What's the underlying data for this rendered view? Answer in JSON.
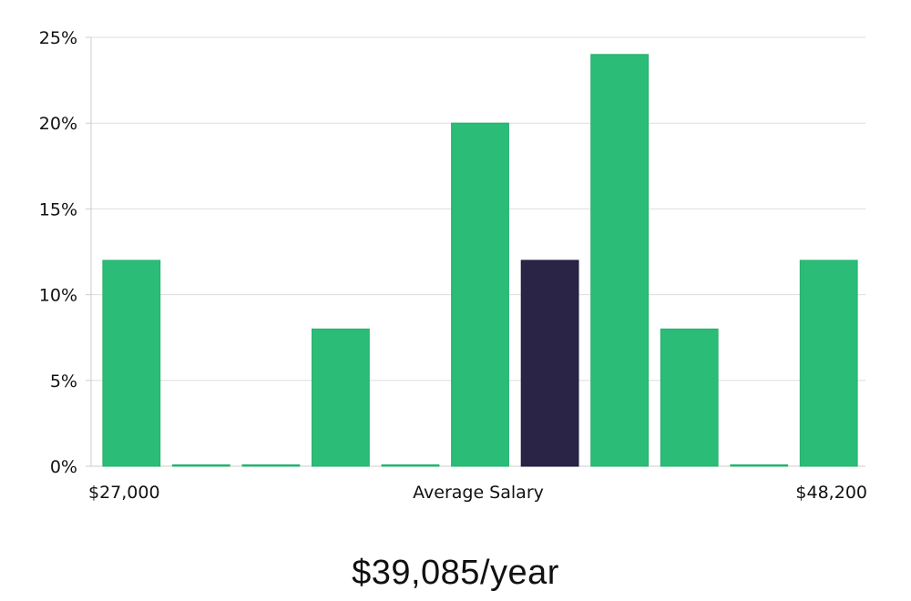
{
  "chart_data": {
    "type": "bar",
    "title": "",
    "xlabel": "Average Salary",
    "ylabel": "",
    "ylim": [
      0,
      25
    ],
    "y_ticks": [
      0,
      5,
      10,
      15,
      20,
      25
    ],
    "y_tick_suffix": "%",
    "grid": true,
    "bins": 11,
    "values": [
      12,
      0,
      0,
      8,
      0,
      20,
      12,
      24,
      8,
      0,
      12
    ],
    "highlight_index": 6,
    "x_min_label": "$27,000",
    "x_max_label": "$48,200",
    "colors": {
      "bar": "#2bbd77",
      "highlight": "#2a2446",
      "grid": "#dddddd",
      "axis": "#cccccc"
    }
  },
  "salary": {
    "value": "$39,085/year"
  }
}
